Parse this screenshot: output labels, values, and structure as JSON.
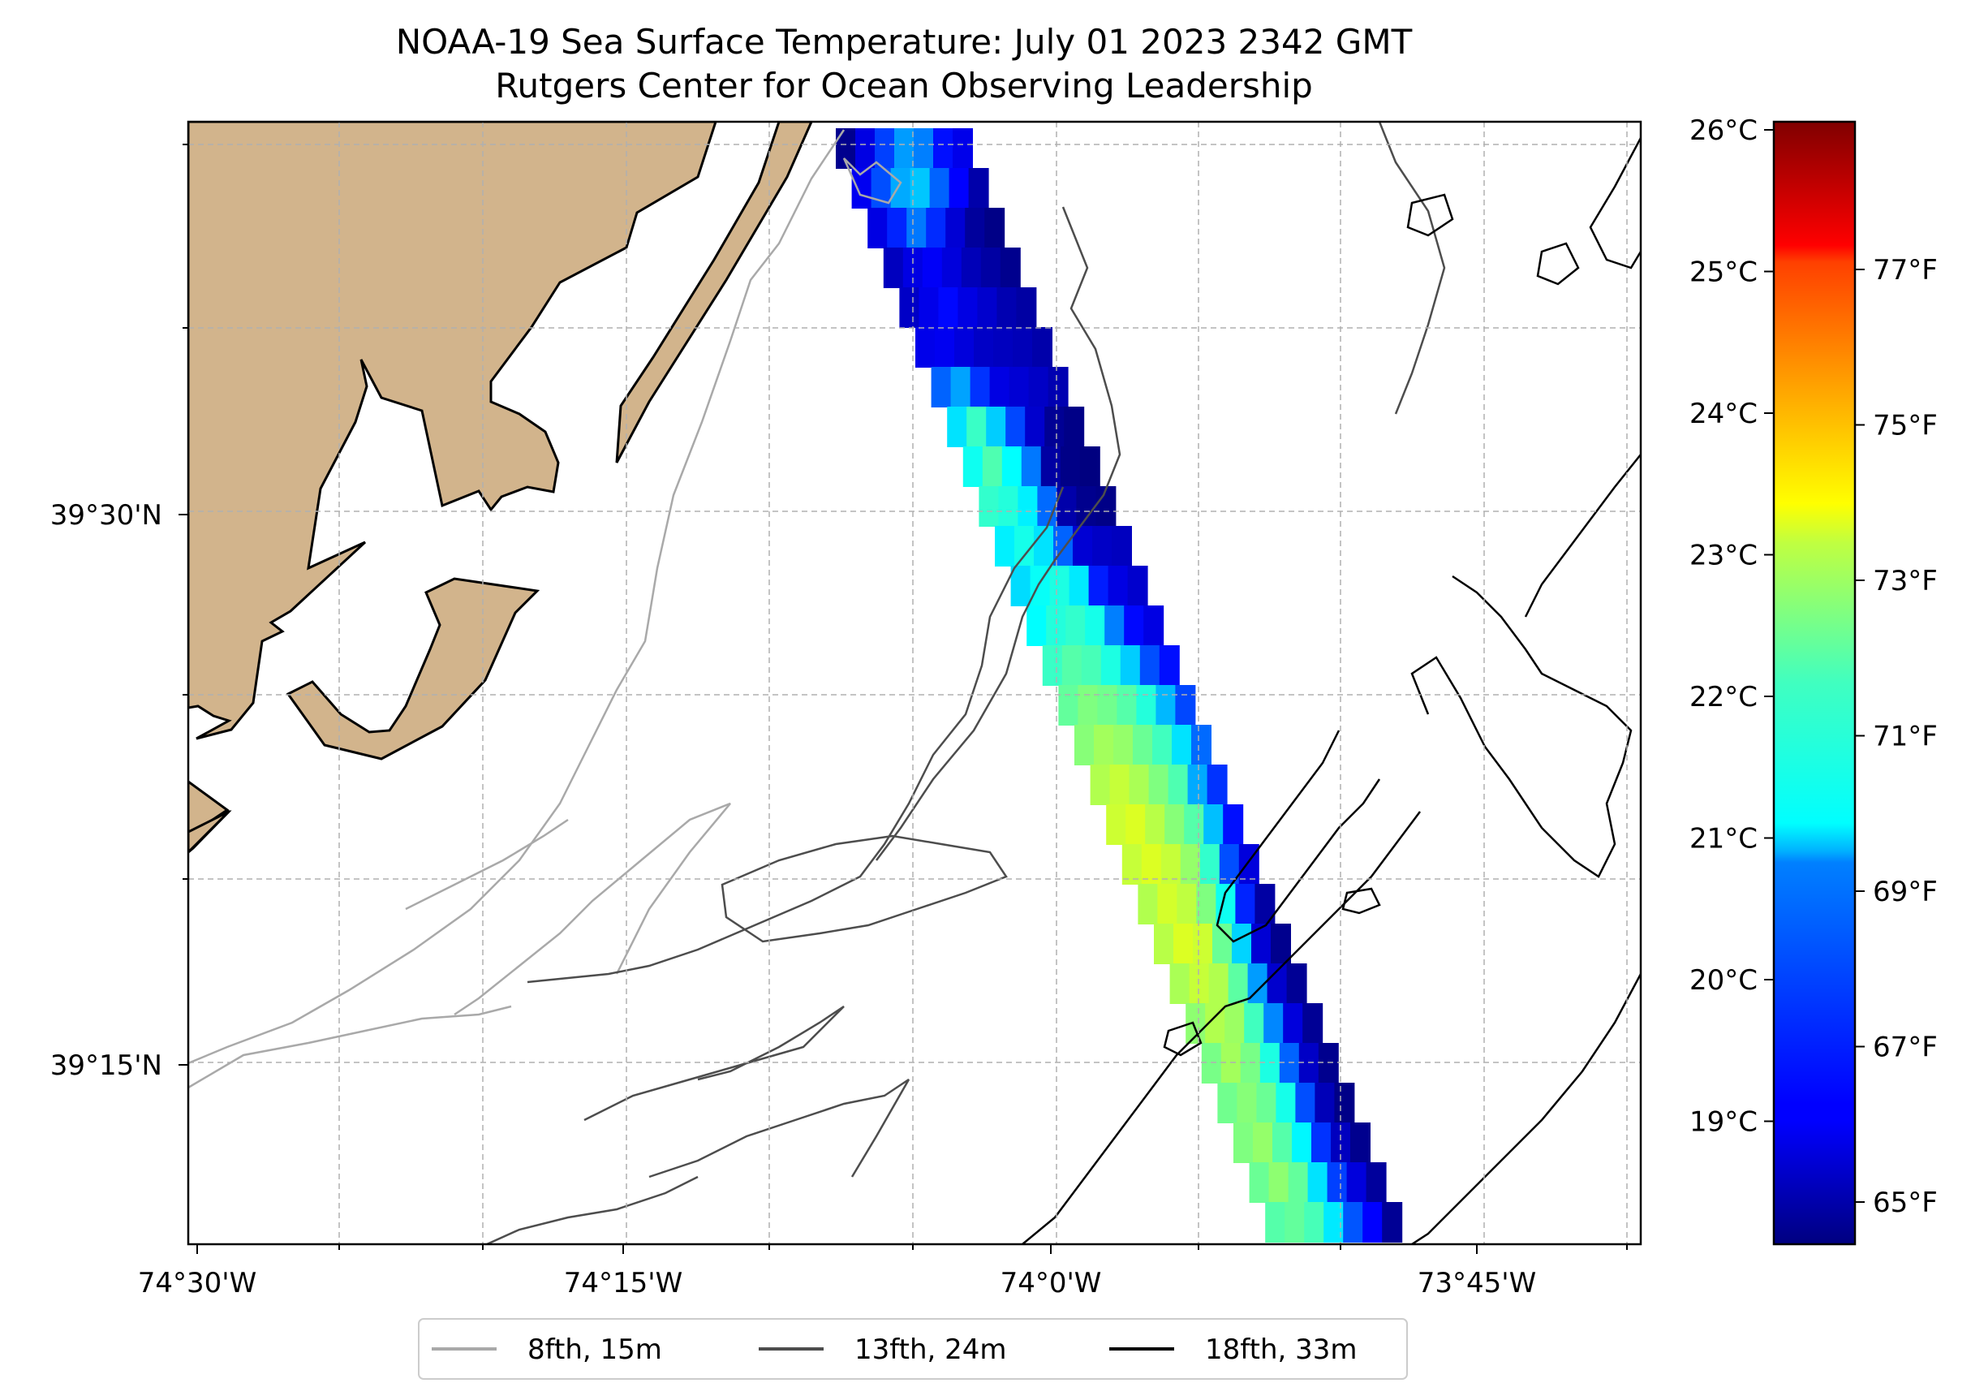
{
  "title": "NOAA-19 Sea Surface Temperature: July 01 2023 2342 GMT",
  "subtitle": "Rutgers Center for Ocean Observing Leadership",
  "map": {
    "lon_ticks": [
      "74°30'W",
      "74°15'W",
      "74°0'W",
      "73°45'W"
    ],
    "lat_ticks": [
      "39°30'N",
      "39°15'N"
    ],
    "land_color": "#d2b48c",
    "grid": true,
    "legend_position": "bottom-center"
  },
  "legend": {
    "items": [
      {
        "label": "8fth, 15m",
        "color": "#a9a9a9"
      },
      {
        "label": "13fth, 24m",
        "color": "#4d4d4d"
      },
      {
        "label": "18fth, 33m",
        "color": "#000000"
      }
    ]
  },
  "colorbar": {
    "colormap": "jet",
    "celsius_ticks": [
      "26°C",
      "25°C",
      "24°C",
      "23°C",
      "22°C",
      "21°C",
      "20°C",
      "19°C"
    ],
    "fahrenheit_ticks": [
      "77°F",
      "75°F",
      "73°F",
      "71°F",
      "69°F",
      "67°F",
      "65°F"
    ],
    "range_f": [
      64.4,
      78.8
    ]
  },
  "sst_swath_f": {
    "rows": [
      [
        64.6,
        65.8,
        67.1,
        68.4,
        68.0,
        66.4,
        65.9
      ],
      [
        66.0,
        67.3,
        68.6,
        69.0,
        67.6,
        66.2,
        65.0
      ],
      [
        65.8,
        66.7,
        67.9,
        66.8,
        65.6,
        64.8,
        64.5
      ],
      [
        65.3,
        65.8,
        66.1,
        65.7,
        65.2,
        64.9,
        64.6
      ],
      [
        65.4,
        65.9,
        66.3,
        65.8,
        65.5,
        65.1,
        64.9
      ],
      [
        65.9,
        66.0,
        65.7,
        65.4,
        65.3,
        65.2,
        65.0
      ],
      [
        67.6,
        68.5,
        66.9,
        65.8,
        65.6,
        65.4,
        65.1
      ],
      [
        69.4,
        70.6,
        69.1,
        67.2,
        65.5,
        64.7,
        64.5
      ],
      [
        70.0,
        70.9,
        69.8,
        67.9,
        64.9,
        64.5,
        64.4
      ],
      [
        70.5,
        70.3,
        69.6,
        67.7,
        65.0,
        64.6,
        64.5
      ],
      [
        69.6,
        70.1,
        69.4,
        67.6,
        65.6,
        65.4,
        65.3
      ],
      [
        69.3,
        69.9,
        70.2,
        69.5,
        66.6,
        65.8,
        65.5
      ],
      [
        69.8,
        70.3,
        70.5,
        70.1,
        68.0,
        66.3,
        65.8
      ],
      [
        70.6,
        71.0,
        70.8,
        70.2,
        69.1,
        67.3,
        66.4
      ],
      [
        71.2,
        71.6,
        71.4,
        71.0,
        70.3,
        68.8,
        67.2
      ],
      [
        71.7,
        72.1,
        71.9,
        71.3,
        70.7,
        69.4,
        67.7
      ],
      [
        72.3,
        72.6,
        72.2,
        71.6,
        70.9,
        68.6,
        66.9
      ],
      [
        72.7,
        72.9,
        72.4,
        71.7,
        71.0,
        68.9,
        66.4
      ],
      [
        72.6,
        72.9,
        72.6,
        71.9,
        70.5,
        67.3,
        65.7
      ],
      [
        72.3,
        72.8,
        72.5,
        71.6,
        70.0,
        66.7,
        64.9
      ],
      [
        72.4,
        72.9,
        72.7,
        71.3,
        69.2,
        65.6,
        64.6
      ],
      [
        72.2,
        72.6,
        72.3,
        71.1,
        68.4,
        65.5,
        64.7
      ],
      [
        71.8,
        72.3,
        72.0,
        70.7,
        68.1,
        65.7,
        64.7
      ],
      [
        71.5,
        72.1,
        71.5,
        70.2,
        67.6,
        65.4,
        64.6
      ],
      [
        71.4,
        71.7,
        71.3,
        70.1,
        67.3,
        65.2,
        64.5
      ],
      [
        71.6,
        71.9,
        71.0,
        69.7,
        66.9,
        65.3,
        64.6
      ],
      [
        71.3,
        71.8,
        71.2,
        69.4,
        67.1,
        65.7,
        64.8
      ],
      [
        71.0,
        71.2,
        70.8,
        69.5,
        67.4,
        66.2,
        64.7
      ]
    ]
  }
}
